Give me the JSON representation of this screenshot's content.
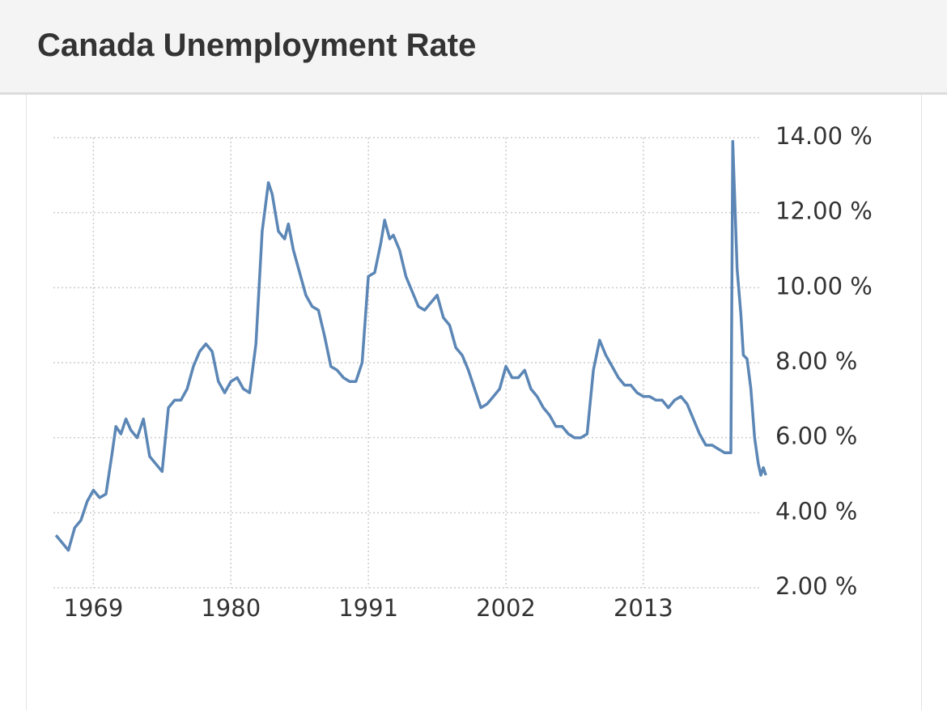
{
  "chart_data": {
    "type": "line",
    "title": "Canada Unemployment Rate",
    "color": "#5b86b5",
    "grid": true,
    "x": [
      1966.0,
      1966.5,
      1967.0,
      1967.5,
      1968.0,
      1968.5,
      1969.0,
      1969.5,
      1970.0,
      1970.5,
      1970.8,
      1971.2,
      1971.6,
      1972.0,
      1972.5,
      1973.0,
      1973.5,
      1974.0,
      1974.5,
      1975.0,
      1975.5,
      1976.0,
      1976.5,
      1977.0,
      1977.5,
      1978.0,
      1978.5,
      1979.0,
      1979.5,
      1980.0,
      1980.5,
      1981.0,
      1981.5,
      1982.0,
      1982.5,
      1983.0,
      1983.3,
      1983.8,
      1984.3,
      1984.6,
      1985.0,
      1985.5,
      1986.0,
      1986.5,
      1987.0,
      1987.5,
      1988.0,
      1988.5,
      1989.0,
      1989.5,
      1990.0,
      1990.5,
      1991.0,
      1991.5,
      1992.0,
      1992.3,
      1992.7,
      1993.0,
      1993.5,
      1994.0,
      1994.5,
      1995.0,
      1995.5,
      1996.0,
      1996.5,
      1997.0,
      1997.5,
      1998.0,
      1998.5,
      1999.0,
      1999.5,
      2000.0,
      2000.5,
      2001.0,
      2001.5,
      2002.0,
      2002.5,
      2003.0,
      2003.5,
      2004.0,
      2004.5,
      2005.0,
      2005.5,
      2006.0,
      2006.5,
      2007.0,
      2007.5,
      2008.0,
      2008.5,
      2009.0,
      2009.5,
      2010.0,
      2010.5,
      2011.0,
      2011.5,
      2012.0,
      2012.5,
      2013.0,
      2013.5,
      2014.0,
      2014.5,
      2015.0,
      2015.5,
      2016.0,
      2016.5,
      2017.0,
      2017.5,
      2018.0,
      2018.5,
      2019.0,
      2019.5,
      2020.0,
      2020.15,
      2020.5,
      2020.8,
      2021.0,
      2021.3,
      2021.6,
      2021.9,
      2022.2,
      2022.4,
      2022.6,
      2022.8
    ],
    "values": [
      3.4,
      3.2,
      3.0,
      3.6,
      3.8,
      4.3,
      4.6,
      4.4,
      4.5,
      5.6,
      6.3,
      6.1,
      6.5,
      6.2,
      6.0,
      6.5,
      5.5,
      5.3,
      5.1,
      6.8,
      7.0,
      7.0,
      7.3,
      7.9,
      8.3,
      8.5,
      8.3,
      7.5,
      7.2,
      7.5,
      7.6,
      7.3,
      7.2,
      8.5,
      11.5,
      12.8,
      12.5,
      11.5,
      11.3,
      11.7,
      11.0,
      10.4,
      9.8,
      9.5,
      9.4,
      8.7,
      7.9,
      7.8,
      7.6,
      7.5,
      7.5,
      8.0,
      10.3,
      10.4,
      11.2,
      11.8,
      11.3,
      11.4,
      11.0,
      10.3,
      9.9,
      9.5,
      9.4,
      9.6,
      9.8,
      9.2,
      9.0,
      8.4,
      8.2,
      7.8,
      7.3,
      6.8,
      6.9,
      7.1,
      7.3,
      7.9,
      7.6,
      7.6,
      7.8,
      7.3,
      7.1,
      6.8,
      6.6,
      6.3,
      6.3,
      6.1,
      6.0,
      6.0,
      6.1,
      7.8,
      8.6,
      8.2,
      7.9,
      7.6,
      7.4,
      7.4,
      7.2,
      7.1,
      7.1,
      7.0,
      7.0,
      6.8,
      7.0,
      7.1,
      6.9,
      6.5,
      6.1,
      5.8,
      5.8,
      5.7,
      5.6,
      5.6,
      13.9,
      10.5,
      9.3,
      8.2,
      8.1,
      7.3,
      6.0,
      5.3,
      5.0,
      5.2,
      5.0
    ],
    "xlim": [
      1965.8,
      2023.5
    ],
    "xticks": [
      1969,
      1980,
      1991,
      2002,
      2013
    ],
    "ylim": [
      2,
      14
    ],
    "yticks": [
      {
        "value": 2,
        "label": "2.00 %"
      },
      {
        "value": 4,
        "label": "4.00 %"
      },
      {
        "value": 6,
        "label": "6.00 %"
      },
      {
        "value": 8,
        "label": "8.00 %"
      },
      {
        "value": 10,
        "label": "10.00 %"
      },
      {
        "value": 12,
        "label": "12.00 %"
      },
      {
        "value": 14,
        "label": "14.00 %"
      }
    ]
  }
}
